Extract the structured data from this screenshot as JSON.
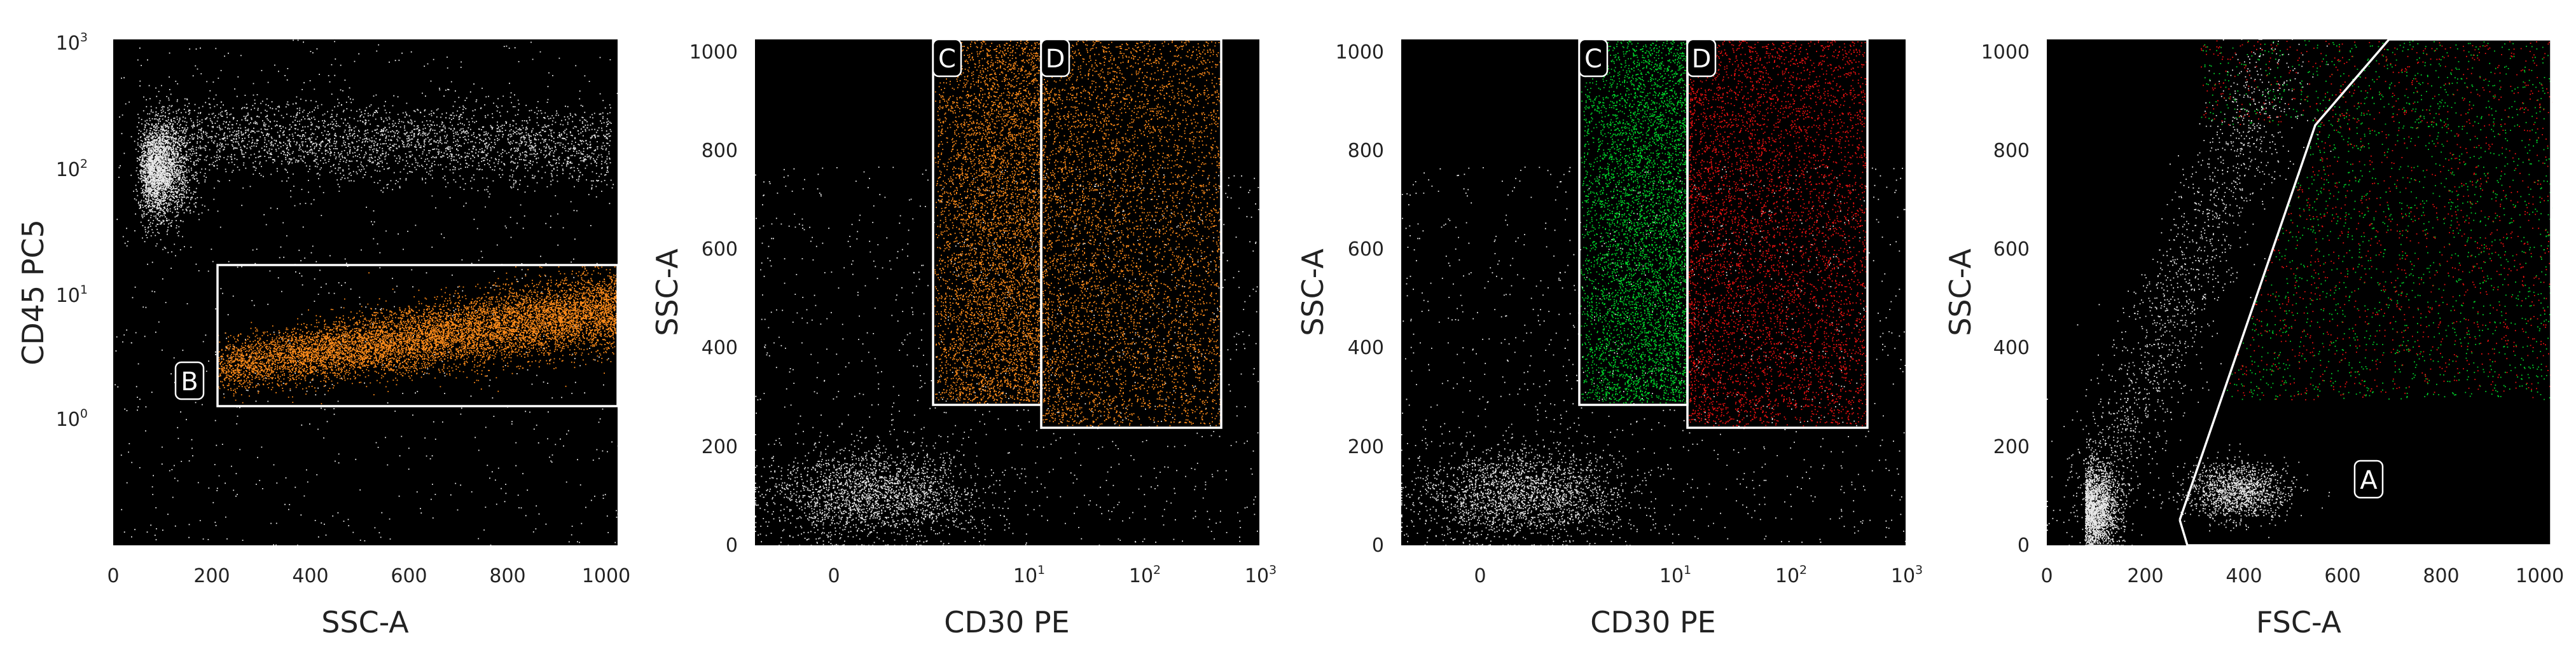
{
  "colors": {
    "background": "#000000",
    "events": "#e8e8e8",
    "gate_B": "#ff8c1a",
    "gate_C": "#00d42a",
    "gate_D": "#ee1111",
    "gate_line": "#ffffff"
  },
  "chart_data": [
    {
      "type": "scatter",
      "xlabel": "SSC-A",
      "ylabel": "CD45 PC5",
      "x_scale": "linear",
      "y_scale": "log",
      "xlim": [
        0,
        1024
      ],
      "ylim": [
        0.1,
        1000
      ],
      "x_ticks": [
        "0",
        "200",
        "400",
        "600",
        "800",
        "1000"
      ],
      "y_ticks": [
        {
          "base": "10",
          "exp": "0"
        },
        {
          "base": "10",
          "exp": "1"
        },
        {
          "base": "10",
          "exp": "2"
        },
        {
          "base": "10",
          "exp": "3"
        }
      ],
      "gates": [
        {
          "label": "B",
          "shape": "rectangle",
          "x_range": [
            210,
            1024
          ],
          "y_range": [
            1.4,
            17
          ],
          "color": "orange"
        }
      ],
      "populations": [
        {
          "color": "white",
          "x_center": 120,
          "y_center": 100,
          "note": "dense cluster at low SSC, high CD45"
        },
        {
          "color": "orange",
          "x_range": [
            210,
            1024
          ],
          "y_center": 5,
          "note": "gated population B"
        }
      ]
    },
    {
      "type": "scatter",
      "xlabel": "CD30 PE",
      "ylabel": "SSC-A",
      "x_scale": "biexponential",
      "y_scale": "linear",
      "ylim": [
        0,
        1024
      ],
      "x_ticks": [
        {
          "base": "0",
          "exp": ""
        },
        {
          "base": "10",
          "exp": "1"
        },
        {
          "base": "10",
          "exp": "2"
        },
        {
          "base": "10",
          "exp": "3"
        }
      ],
      "y_ticks": [
        "0",
        "200",
        "400",
        "600",
        "800",
        "1000"
      ],
      "gates": [
        {
          "label": "C",
          "shape": "rectangle",
          "x_range": [
            3,
            12
          ],
          "y_range": [
            285,
            1024
          ],
          "color": "orange"
        },
        {
          "label": "D",
          "shape": "rectangle",
          "x_range": [
            12,
            500
          ],
          "y_range": [
            240,
            1024
          ],
          "color": "orange"
        }
      ]
    },
    {
      "type": "scatter",
      "xlabel": "CD30 PE",
      "ylabel": "SSC-A",
      "x_scale": "biexponential",
      "y_scale": "linear",
      "ylim": [
        0,
        1024
      ],
      "x_ticks": [
        {
          "base": "0",
          "exp": ""
        },
        {
          "base": "10",
          "exp": "1"
        },
        {
          "base": "10",
          "exp": "2"
        },
        {
          "base": "10",
          "exp": "3"
        }
      ],
      "y_ticks": [
        "0",
        "200",
        "400",
        "600",
        "800",
        "1000"
      ],
      "gates": [
        {
          "label": "C",
          "shape": "rectangle",
          "x_range": [
            3,
            12
          ],
          "y_range": [
            285,
            1024
          ],
          "color": "green"
        },
        {
          "label": "D",
          "shape": "rectangle",
          "x_range": [
            12,
            500
          ],
          "y_range": [
            240,
            1024
          ],
          "color": "red"
        }
      ]
    },
    {
      "type": "scatter",
      "xlabel": "FSC-A",
      "ylabel": "SSC-A",
      "x_scale": "linear",
      "y_scale": "linear",
      "xlim": [
        0,
        1024
      ],
      "ylim": [
        0,
        1024
      ],
      "x_ticks": [
        "0",
        "200",
        "400",
        "600",
        "800",
        "1000"
      ],
      "y_ticks": [
        "0",
        "200",
        "400",
        "600",
        "800",
        "1000"
      ],
      "gates": [
        {
          "label": "A",
          "shape": "polygon",
          "vertices": [
            [
              270,
              50
            ],
            [
              285,
              0
            ],
            [
              1024,
              0
            ],
            [
              1024,
              1024
            ],
            [
              695,
              1024
            ],
            [
              545,
              855
            ]
          ],
          "color": "white"
        }
      ],
      "populations": [
        {
          "color": "green",
          "note": "C population overlay"
        },
        {
          "color": "red",
          "note": "D population overlay"
        }
      ]
    }
  ]
}
